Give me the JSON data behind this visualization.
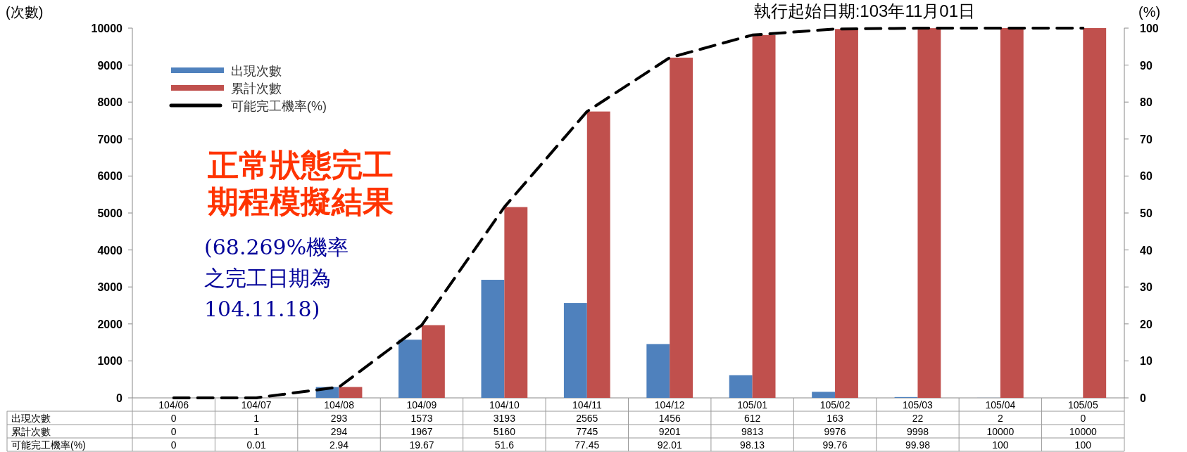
{
  "chart_data": {
    "type": "bar",
    "title": "執行起始日期:103年11月01日",
    "ylabel": "(次數)",
    "y2label": "(%)",
    "categories": [
      "104/06",
      "104/07",
      "104/08",
      "104/09",
      "104/10",
      "104/11",
      "104/12",
      "105/01",
      "105/02",
      "105/03",
      "105/04",
      "105/05"
    ],
    "series": [
      {
        "name": "出現次數",
        "color": "#4f81bd",
        "values": [
          0,
          1,
          293,
          1573,
          3193,
          2565,
          1456,
          612,
          163,
          22,
          2,
          0
        ]
      },
      {
        "name": "累計次數",
        "color": "#c0504d",
        "values": [
          0,
          1,
          294,
          1967,
          5160,
          7745,
          9201,
          9813,
          9976,
          9998,
          10000,
          10000
        ]
      },
      {
        "name": "可能完工機率(%)",
        "type": "line",
        "axis": "y2",
        "color": "#000000",
        "line_style": "dashed",
        "values": [
          0,
          0.01,
          2.94,
          19.67,
          51.6,
          77.45,
          92.01,
          98.13,
          99.76,
          99.98,
          100,
          100
        ]
      }
    ],
    "ylim": [
      0,
      10000
    ],
    "yticks": [
      0,
      1000,
      2000,
      3000,
      4000,
      5000,
      6000,
      7000,
      8000,
      9000,
      10000
    ],
    "y2lim": [
      0,
      100
    ],
    "y2ticks": [
      0,
      10,
      20,
      30,
      40,
      50,
      60,
      70,
      80,
      90,
      100
    ],
    "legend": "top left",
    "data_labels": true,
    "marker": "none",
    "grid": false,
    "annotations": [
      "正常狀態完工",
      "期程模擬結果",
      "(68.269%機率",
      "之完工日期為",
      "104.11.18)"
    ]
  }
}
